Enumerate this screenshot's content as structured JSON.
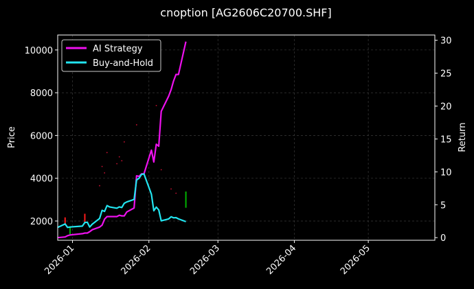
{
  "chart_data": {
    "type": "line",
    "title": "cnoption [AG2606C20700.SHF]",
    "xlabel": "",
    "ylabel_left": "Price",
    "ylabel_right": "Return",
    "x_range": [
      "2025-12-26",
      "2026-05-28"
    ],
    "ylim_left": [
      1100,
      10700
    ],
    "ylim_right": [
      -0.4,
      30.8
    ],
    "x_ticks": [
      "2026-01",
      "2026-02",
      "2026-03",
      "2026-04",
      "2026-05"
    ],
    "y_ticks_left": [
      2000,
      4000,
      6000,
      8000,
      10000
    ],
    "y_ticks_right": [
      0,
      5,
      10,
      15,
      20,
      25,
      30
    ],
    "grid": true,
    "legend_position": "top-left",
    "series": [
      {
        "name": "AI Strategy",
        "color": "#ee11ee",
        "axis": "right",
        "points": [
          [
            "2025-12-26",
            0.0
          ],
          [
            "2025-12-29",
            0.1
          ],
          [
            "2025-12-30",
            0.3
          ],
          [
            "2025-12-31",
            0.4
          ],
          [
            "2026-01-05",
            0.6
          ],
          [
            "2026-01-06",
            0.7
          ],
          [
            "2026-01-07",
            0.7
          ],
          [
            "2026-01-08",
            0.9
          ],
          [
            "2026-01-09",
            1.2
          ],
          [
            "2026-01-12",
            1.6
          ],
          [
            "2026-01-13",
            1.9
          ],
          [
            "2026-01-14",
            2.8
          ],
          [
            "2026-01-15",
            3.2
          ],
          [
            "2026-01-16",
            3.2
          ],
          [
            "2026-01-19",
            3.2
          ],
          [
            "2026-01-20",
            3.4
          ],
          [
            "2026-01-21",
            3.3
          ],
          [
            "2026-01-22",
            3.3
          ],
          [
            "2026-01-23",
            3.9
          ],
          [
            "2026-01-26",
            4.5
          ],
          [
            "2026-01-27",
            9.4
          ],
          [
            "2026-01-28",
            9.3
          ],
          [
            "2026-01-29",
            9.7
          ],
          [
            "2026-01-30",
            9.7
          ],
          [
            "2026-02-02",
            13.3
          ],
          [
            "2026-02-03",
            11.5
          ],
          [
            "2026-02-04",
            14.2
          ],
          [
            "2026-02-05",
            13.9
          ],
          [
            "2026-02-06",
            19.2
          ],
          [
            "2026-02-09",
            21.5
          ],
          [
            "2026-02-10",
            22.5
          ],
          [
            "2026-02-11",
            23.8
          ],
          [
            "2026-02-12",
            24.8
          ],
          [
            "2026-02-13",
            24.8
          ],
          [
            "2026-02-16",
            29.8
          ]
        ]
      },
      {
        "name": "Buy-and-Hold",
        "color": "#22e5f0",
        "axis": "left",
        "points": [
          [
            "2025-12-26",
            1700
          ],
          [
            "2025-12-29",
            1860
          ],
          [
            "2025-12-30",
            1700
          ],
          [
            "2025-12-31",
            1720
          ],
          [
            "2026-01-05",
            1760
          ],
          [
            "2026-01-06",
            1930
          ],
          [
            "2026-01-07",
            1940
          ],
          [
            "2026-01-08",
            1720
          ],
          [
            "2026-01-09",
            1850
          ],
          [
            "2026-01-12",
            2120
          ],
          [
            "2026-01-13",
            2500
          ],
          [
            "2026-01-14",
            2450
          ],
          [
            "2026-01-15",
            2720
          ],
          [
            "2026-01-16",
            2660
          ],
          [
            "2026-01-19",
            2600
          ],
          [
            "2026-01-20",
            2660
          ],
          [
            "2026-01-21",
            2630
          ],
          [
            "2026-01-22",
            2830
          ],
          [
            "2026-01-23",
            2890
          ],
          [
            "2026-01-26",
            3010
          ],
          [
            "2026-01-27",
            3920
          ],
          [
            "2026-01-28",
            4000
          ],
          [
            "2026-01-29",
            4180
          ],
          [
            "2026-01-30",
            4200
          ],
          [
            "2026-02-02",
            3250
          ],
          [
            "2026-02-03",
            2480
          ],
          [
            "2026-02-04",
            2650
          ],
          [
            "2026-02-05",
            2520
          ],
          [
            "2026-02-06",
            2010
          ],
          [
            "2026-02-09",
            2100
          ],
          [
            "2026-02-10",
            2200
          ],
          [
            "2026-02-11",
            2150
          ],
          [
            "2026-02-12",
            2160
          ],
          [
            "2026-02-13",
            2100
          ],
          [
            "2026-02-16",
            1970
          ]
        ]
      }
    ],
    "candles": [
      {
        "date": "2025-12-29",
        "low": 1860,
        "high": 2170,
        "direction": "up"
      },
      {
        "date": "2025-12-31",
        "low": 1380,
        "high": 1720,
        "direction": "down"
      },
      {
        "date": "2026-01-06",
        "low": 1940,
        "high": 2340,
        "direction": "up"
      },
      {
        "date": "2026-02-16",
        "low": 2620,
        "high": 3380,
        "direction": "down"
      }
    ],
    "scatter_dots": [
      [
        "2026-01-12",
        3650
      ],
      [
        "2026-01-13",
        4550
      ],
      [
        "2026-01-14",
        4250
      ],
      [
        "2026-01-15",
        5200
      ],
      [
        "2026-01-19",
        4680
      ],
      [
        "2026-01-20",
        5000
      ],
      [
        "2026-01-21",
        4820
      ],
      [
        "2026-01-22",
        5700
      ],
      [
        "2026-01-27",
        6500
      ],
      [
        "2026-02-04",
        7400
      ],
      [
        "2026-02-06",
        4400
      ],
      [
        "2026-02-10",
        3500
      ],
      [
        "2026-02-12",
        3300
      ]
    ],
    "colors": {
      "background": "#000000",
      "grid": "#3a3a3a",
      "up": "#ff1a1a",
      "down": "#00b300",
      "dots": "#cc1133"
    }
  }
}
